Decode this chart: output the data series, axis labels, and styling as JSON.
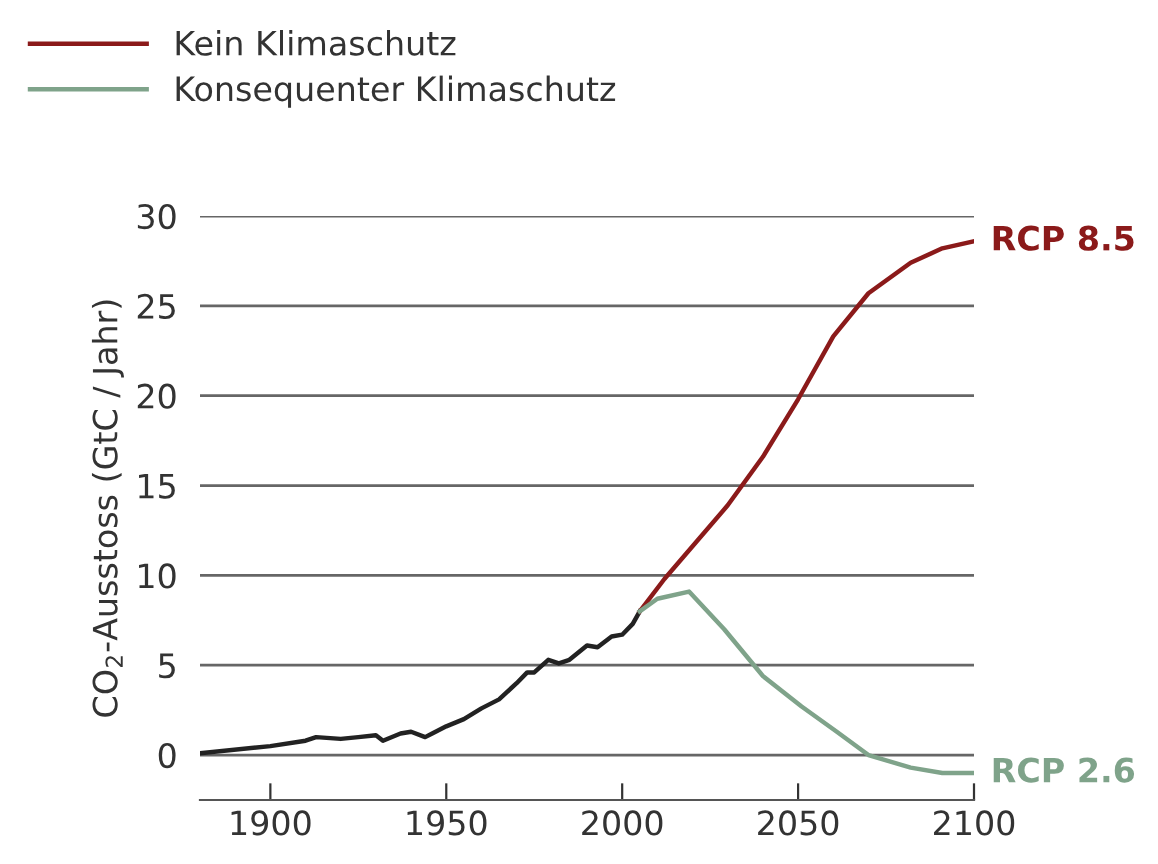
{
  "chart_data": {
    "type": "line",
    "ylabel": "CO$_{2}$-Ausstoss (GtC / Jahr)",
    "xlim": [
      1880,
      2100
    ],
    "xticks": [
      1900,
      1950,
      2000,
      2050,
      2100
    ],
    "ylim": [
      -2.5,
      30
    ],
    "yticks": [
      0,
      5,
      10,
      15,
      20,
      25,
      30
    ],
    "grid": "y",
    "legend": "top left",
    "line_style": "solid",
    "marker": "none",
    "series": [
      {
        "color": "#222222",
        "x": [
          1880,
          1900,
          1910,
          1913,
          1920,
          1925,
          1930,
          1932,
          1937,
          1940,
          1944,
          1946,
          1950,
          1955,
          1960,
          1965,
          1970,
          1973,
          1975,
          1979,
          1982,
          1985,
          1990,
          1993,
          1997,
          2000,
          2003,
          2005
        ],
        "values": [
          0.1,
          0.5,
          0.8,
          1.0,
          0.9,
          1.0,
          1.1,
          0.8,
          1.2,
          1.3,
          1.0,
          1.2,
          1.6,
          2.0,
          2.6,
          3.1,
          4.0,
          4.6,
          4.6,
          5.3,
          5.1,
          5.3,
          6.1,
          6.0,
          6.6,
          6.7,
          7.3,
          8.0
        ]
      },
      {
        "name": "Kein Klimaschutz",
        "color": "#8b1a1a",
        "x": [
          2005,
          2012,
          2030,
          2040,
          2050,
          2060,
          2070,
          2082,
          2091,
          2100
        ],
        "values": [
          8.0,
          9.8,
          13.9,
          16.6,
          19.8,
          23.3,
          25.7,
          27.4,
          28.2,
          28.6
        ]
      },
      {
        "name": "Konsequenter Klimaschutz",
        "color": "#7fa38a",
        "x": [
          2005,
          2010,
          2019,
          2029,
          2040,
          2051,
          2061,
          2070,
          2082,
          2091,
          2100
        ],
        "values": [
          8.0,
          8.7,
          9.1,
          7.0,
          4.4,
          2.7,
          1.3,
          0.0,
          -0.7,
          -1.0,
          -1.0
        ]
      }
    ],
    "annotations": [
      {
        "text": "RCP 8.5",
        "x": 2100,
        "y": 28.6
      },
      {
        "text": "RCP 2.6",
        "x": 2100,
        "y": -1.0
      }
    ]
  }
}
